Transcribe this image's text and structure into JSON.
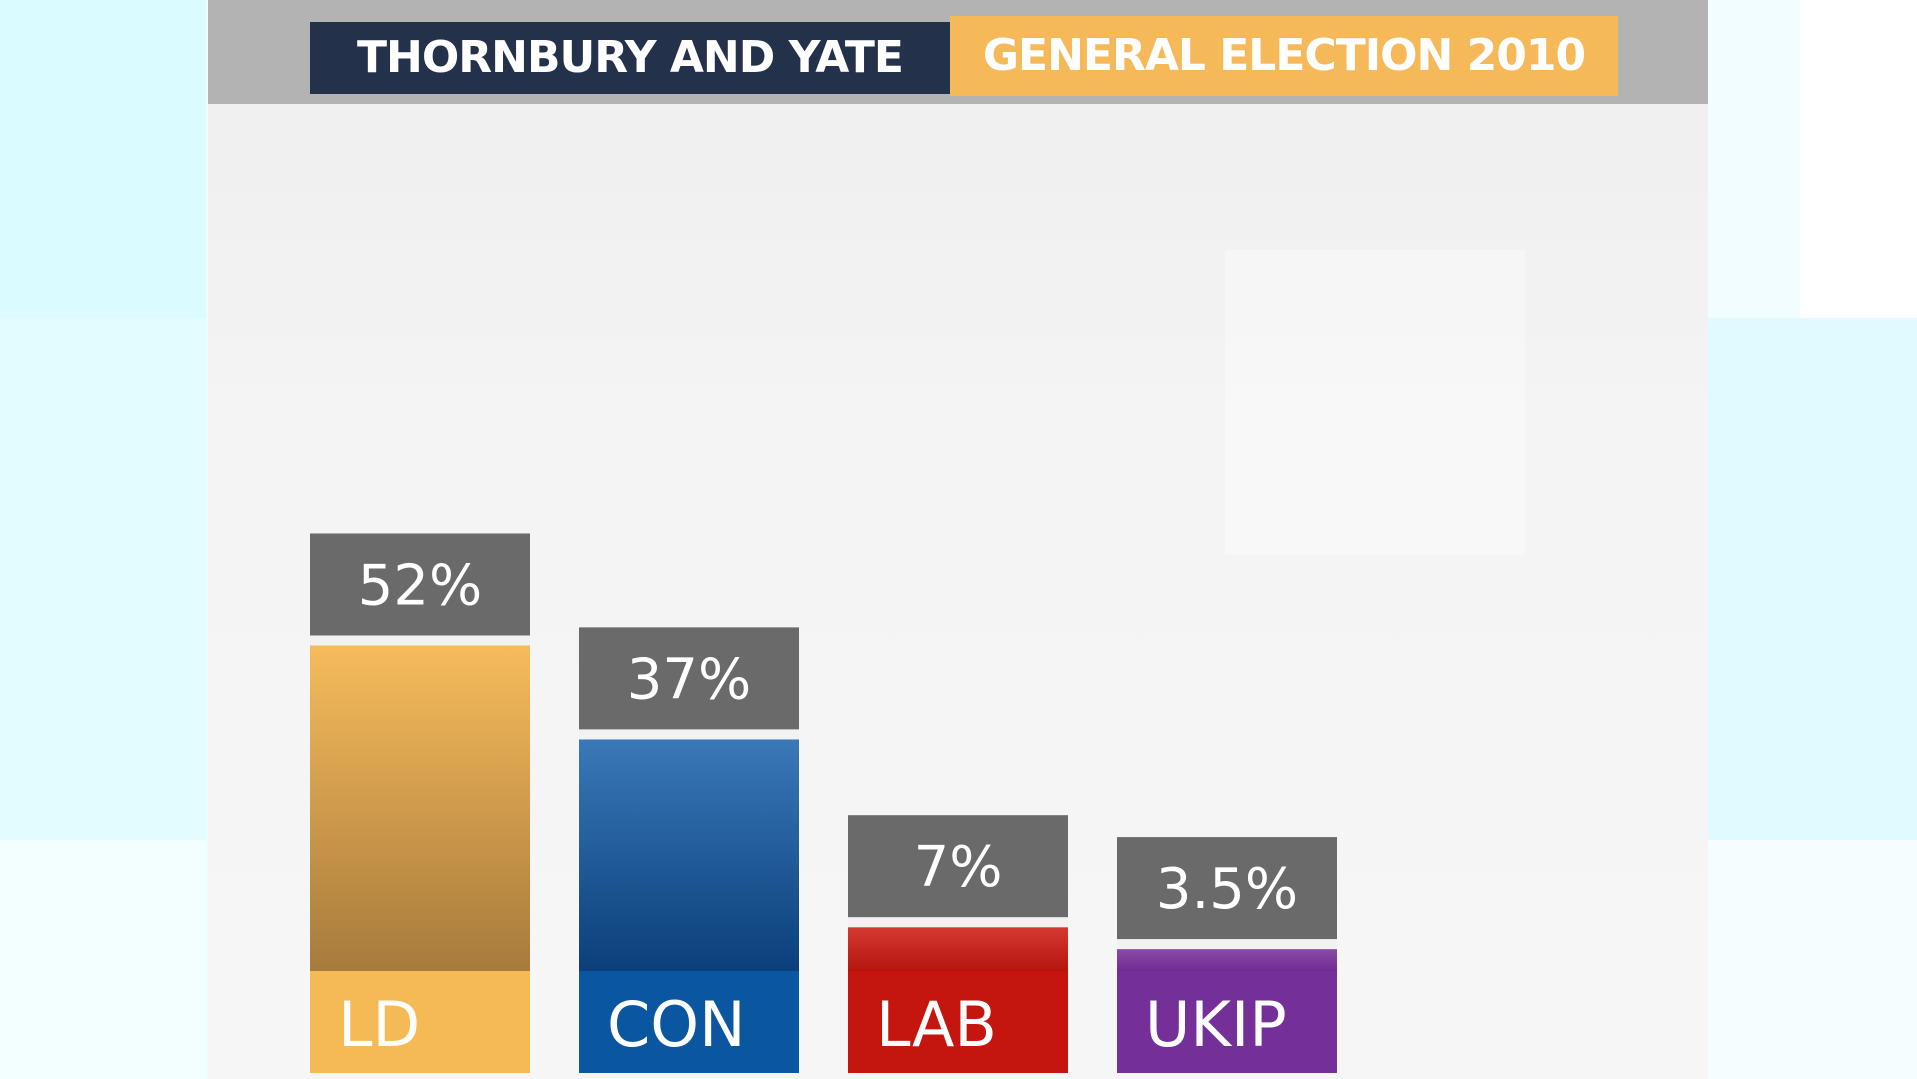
{
  "header": {
    "constituency": "THORNBURY AND YATE",
    "election": "GENERAL ELECTION 2010"
  },
  "colors": {
    "header_dark": "#23324a",
    "header_accent": "#f5b95a",
    "value_box": "#6a6a6a"
  },
  "chart_data": {
    "type": "bar",
    "title": "THORNBURY AND YATE GENERAL ELECTION 2010",
    "xlabel": "",
    "ylabel": "",
    "ylim": [
      0,
      100
    ],
    "grid": false,
    "categories": [
      "LD",
      "CON",
      "LAB",
      "UKIP"
    ],
    "values": [
      52,
      37,
      7,
      3.5
    ],
    "value_labels": [
      "52%",
      "37%",
      "7%",
      "3.5%"
    ],
    "bar_colors": [
      {
        "top": "#f6bb5c",
        "bottom": "#a77b3c",
        "label_bg": "#f5b955"
      },
      {
        "top": "#3a78b8",
        "bottom": "#0a3f7a",
        "label_bg": "#0a56a0"
      },
      {
        "top": "#d43a32",
        "bottom": "#b5150f",
        "label_bg": "#c4160e"
      },
      {
        "top": "#8b4aa6",
        "bottom": "#702c94",
        "label_bg": "#752f98"
      }
    ]
  }
}
